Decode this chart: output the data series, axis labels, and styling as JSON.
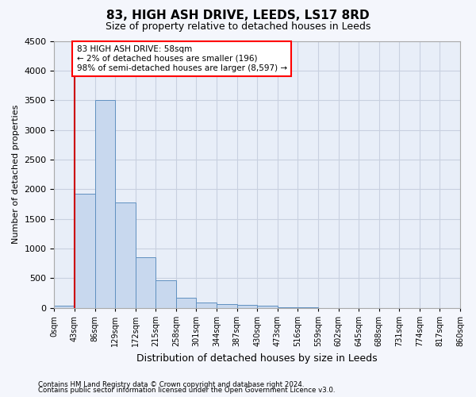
{
  "title": "83, HIGH ASH DRIVE, LEEDS, LS17 8RD",
  "subtitle": "Size of property relative to detached houses in Leeds",
  "xlabel": "Distribution of detached houses by size in Leeds",
  "ylabel": "Number of detached properties",
  "bin_labels": [
    "0sqm",
    "43sqm",
    "86sqm",
    "129sqm",
    "172sqm",
    "215sqm",
    "258sqm",
    "301sqm",
    "344sqm",
    "387sqm",
    "430sqm",
    "473sqm",
    "516sqm",
    "559sqm",
    "602sqm",
    "645sqm",
    "688sqm",
    "731sqm",
    "774sqm",
    "817sqm",
    "860sqm"
  ],
  "bar_heights": [
    35,
    1920,
    3500,
    1780,
    860,
    460,
    175,
    95,
    60,
    55,
    40,
    8,
    4,
    2,
    1,
    0,
    0,
    0,
    0,
    0
  ],
  "bar_color": "#c8d8ee",
  "bar_edge_color": "#6090c0",
  "annotation_box_text": "83 HIGH ASH DRIVE: 58sqm\n← 2% of detached houses are smaller (196)\n98% of semi-detached houses are larger (8,597) →",
  "vline_x": 1.0,
  "vline_color": "#cc0000",
  "ylim": [
    0,
    4500
  ],
  "yticks": [
    0,
    500,
    1000,
    1500,
    2000,
    2500,
    3000,
    3500,
    4000,
    4500
  ],
  "footer_line1": "Contains HM Land Registry data © Crown copyright and database right 2024.",
  "footer_line2": "Contains public sector information licensed under the Open Government Licence v3.0.",
  "fig_bg_color": "#f4f6fc",
  "plot_bg_color": "#e8eef8",
  "grid_color": "#c8d0e0",
  "title_fontsize": 11,
  "subtitle_fontsize": 9,
  "ylabel_fontsize": 8,
  "xlabel_fontsize": 9,
  "tick_fontsize": 8,
  "xtick_fontsize": 7
}
